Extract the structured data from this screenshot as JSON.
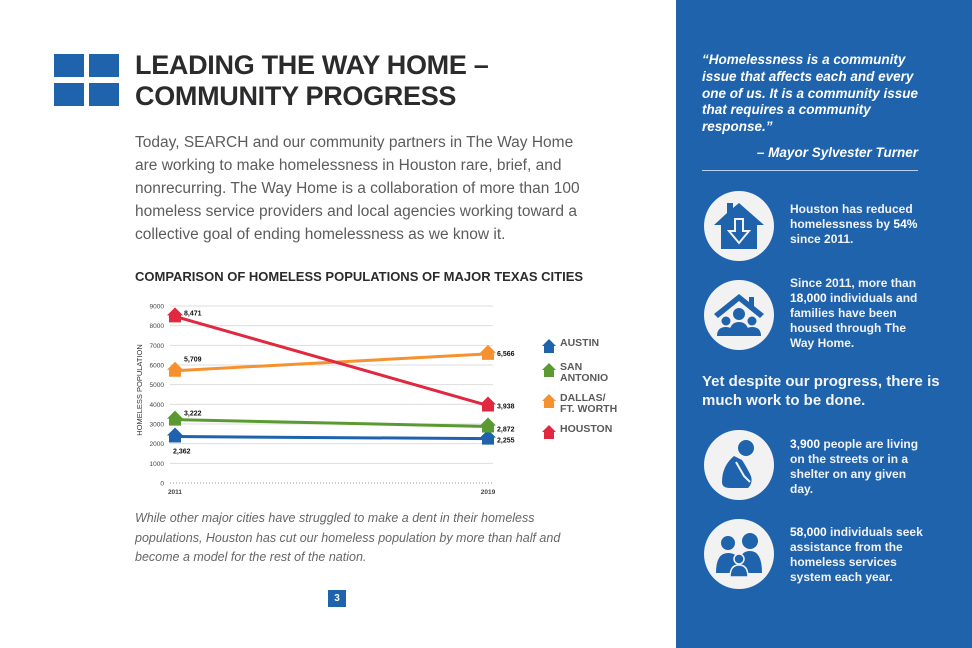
{
  "page": {
    "title_line1": "LEADING THE WAY HOME –",
    "title_line2": "COMMUNITY PROGRESS",
    "intro": "Today, SEARCH and our community partners in The Way Home are working to make homelessness in Houston rare, brief, and nonrecurring. The Way Home is a collaboration of more than 100 homeless service providers and local agencies working toward a collective goal of ending homelessness as we know it.",
    "caption": "While other major cities have struggled to make a dent in their homeless populations, Houston has cut our homeless population by more than half and become a model for the rest of the nation.",
    "page_number": "3",
    "brand_color": "#1f63ad"
  },
  "chart_data": {
    "type": "line",
    "title": "COMPARISON OF HOMELESS POPULATIONS OF MAJOR TEXAS CITIES",
    "xlabel": "",
    "ylabel": "HOMELESS POPULATION",
    "x": [
      "2011",
      "2019"
    ],
    "ylim": [
      0,
      9000
    ],
    "yticks": [
      "0",
      "1000",
      "2000",
      "3000",
      "4000",
      "5000",
      "6000",
      "7000",
      "8000",
      "9000"
    ],
    "grid": true,
    "legend_position": "right",
    "marker": "house",
    "series": [
      {
        "name": "AUSTIN",
        "color": "#1f63ad",
        "values": [
          2362,
          2255
        ],
        "labels": [
          "2,362",
          "2,255"
        ]
      },
      {
        "name": "SAN ANTONIO",
        "color": "#5b9a32",
        "values": [
          3222,
          2872
        ],
        "labels": [
          "3,222",
          "2,872"
        ]
      },
      {
        "name": "DALLAS/ FT. WORTH",
        "color": "#f5922f",
        "values": [
          5709,
          6566
        ],
        "labels": [
          "5,709",
          "6,566"
        ]
      },
      {
        "name": "HOUSTON",
        "color": "#e0283f",
        "values": [
          8471,
          3938
        ],
        "labels": [
          "8,471",
          "3,938"
        ]
      }
    ]
  },
  "legend": [
    {
      "line1": "AUSTIN",
      "line2": ""
    },
    {
      "line1": "SAN",
      "line2": "ANTONIO"
    },
    {
      "line1": "DALLAS/",
      "line2": "FT. WORTH"
    },
    {
      "line1": "HOUSTON",
      "line2": ""
    }
  ],
  "sidebar": {
    "quote": "“Homelessness is a community issue that affects each and every one of us. It is a community issue that requires a community response.”",
    "attribution": "– Mayor Sylvester Turner",
    "stats": [
      {
        "icon": "house-down-arrow-icon",
        "pre": "Houston has reduced homelessness by ",
        "bold": "54%",
        "post": " since 2011."
      },
      {
        "icon": "house-family-icon",
        "pre": "Since 2011, more than ",
        "bold": "18,000",
        "post": " individuals and families have been housed through The Way Home."
      },
      {
        "icon": "person-huddled-icon",
        "pre": "",
        "bold": "3,900",
        "post": " people are living on the streets or in a shelter on any given day."
      },
      {
        "icon": "family-icon",
        "pre": "",
        "bold": "58,000",
        "post": " individuals seek assistance from the homeless services system each year."
      }
    ],
    "callout": "Yet despite our progress, there is much work to be done."
  }
}
